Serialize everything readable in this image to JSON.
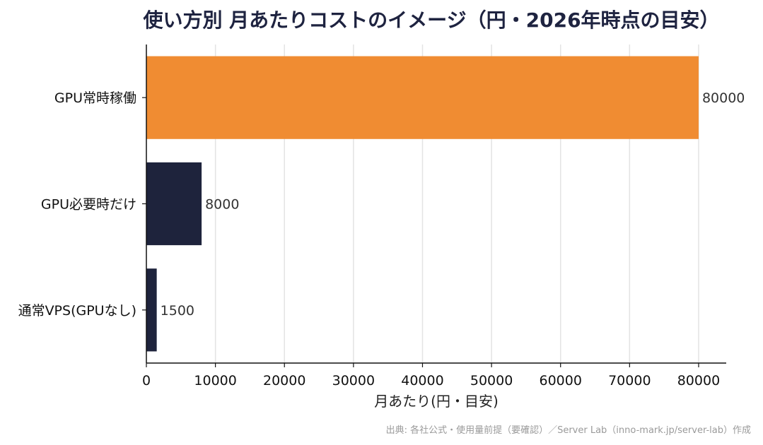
{
  "chart_data": {
    "type": "bar",
    "orientation": "horizontal",
    "title": "使い方別 月あたりコストのイメージ（円・2026年時点の目安）",
    "categories": [
      "GPU常時稼働",
      "GPU必要時だけ",
      "通常VPS(GPUなし)"
    ],
    "values": [
      80000,
      8000,
      1500
    ],
    "data_labels": [
      "80000",
      "8000",
      "1500"
    ],
    "bar_colors": [
      "#f08c32",
      "#1e233c",
      "#1e233c"
    ],
    "xlabel": "月あたり(円・目安)",
    "ylabel": "",
    "xlim": [
      0,
      84000
    ],
    "xticks": [
      0,
      10000,
      20000,
      30000,
      40000,
      50000,
      60000,
      70000,
      80000
    ],
    "xtick_labels": [
      "0",
      "10000",
      "20000",
      "30000",
      "40000",
      "50000",
      "60000",
      "70000",
      "80000"
    ],
    "grid": "vertical",
    "source": "出典: 各社公式・使用量前提（要確認）／Server Lab（inno-mark.jp/server-lab）作成"
  }
}
